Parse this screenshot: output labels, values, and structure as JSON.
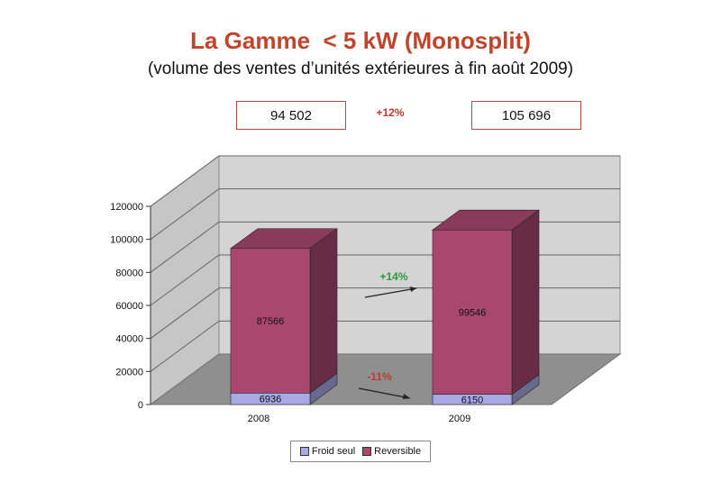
{
  "header": {
    "title": "La Gamme  < 5 kW (Monosplit)",
    "subtitle": "(volume des ventes d’unités extérieures à fin août 2009)"
  },
  "totals": {
    "left_value": "94 502",
    "change": "+12%",
    "right_value": "105 696"
  },
  "annotations": {
    "reversible_change": "+14%",
    "froid_change": "-11%"
  },
  "colors": {
    "froid_seul": "#a9a9e6",
    "reversible": "#a8486f",
    "title": "#c0452a",
    "positive": "#2e9a3a",
    "negative": "#c0392b"
  },
  "chart_data": {
    "type": "bar",
    "stacked": true,
    "categories": [
      "2008",
      "2009"
    ],
    "series": [
      {
        "name": "Froid seul",
        "values": [
          6936,
          6150
        ]
      },
      {
        "name": "Reversible",
        "values": [
          87566,
          99546
        ]
      }
    ],
    "ylim": [
      0,
      120000
    ],
    "yticks": [
      "0",
      "20000",
      "40000",
      "60000",
      "80000",
      "100000",
      "120000"
    ],
    "grid": true,
    "legend": "bottom"
  }
}
